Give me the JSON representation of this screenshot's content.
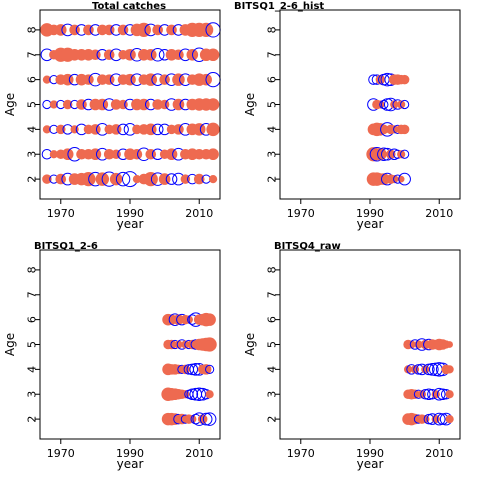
{
  "figure": {
    "background": "#ffffff",
    "colors": {
      "positive": "#EE6A50",
      "negative": "#0000FF",
      "frame": "#000000"
    }
  },
  "chart_data": [
    {
      "type": "scatter",
      "title": "Total catches",
      "xlabel": "year",
      "ylabel": "Age",
      "xlim": [
        1964,
        2016
      ],
      "ylim": [
        1.2,
        8.8
      ],
      "xticks": [
        1970,
        1990,
        2010
      ],
      "yticks": [
        2,
        3,
        4,
        5,
        6,
        7,
        8
      ],
      "years": [
        1966,
        1968,
        1970,
        1972,
        1974,
        1976,
        1978,
        1980,
        1982,
        1984,
        1986,
        1988,
        1990,
        1992,
        1994,
        1996,
        1998,
        2000,
        2002,
        2004,
        2006,
        2008,
        2010,
        2012,
        2014
      ],
      "residuals": [
        {
          "age": 2,
          "values": [
            0.4,
            -0.3,
            0.5,
            -0.6,
            0.6,
            0.7,
            0.9,
            -0.8,
            0.8,
            -0.9,
            0.7,
            -0.8,
            -1.0,
            0.3,
            0.5,
            0.9,
            -0.7,
            0.6,
            -0.5,
            -0.6,
            0.4,
            -0.4,
            0.5,
            -0.3,
            0.3
          ]
        },
        {
          "age": 3,
          "values": [
            -0.4,
            0.3,
            0.4,
            0.6,
            -0.8,
            0.5,
            0.5,
            0.6,
            -0.6,
            0.5,
            0.4,
            -0.5,
            0.6,
            0.5,
            -0.7,
            0.5,
            -0.5,
            0.4,
            0.6,
            -0.6,
            0.5,
            0.6,
            0.5,
            0.5,
            0.6
          ]
        },
        {
          "age": 4,
          "values": [
            0.3,
            -0.3,
            0.4,
            -0.4,
            0.3,
            -0.5,
            0.4,
            0.5,
            -0.6,
            0.4,
            0.5,
            -0.5,
            -0.6,
            0.4,
            0.5,
            0.6,
            -0.5,
            -0.5,
            0.4,
            0.5,
            -0.6,
            0.6,
            0.7,
            -0.6,
            0.8
          ]
        },
        {
          "age": 5,
          "values": [
            -0.3,
            0.3,
            -0.3,
            0.4,
            -0.3,
            0.5,
            -0.5,
            0.6,
            0.6,
            -0.6,
            0.5,
            0.4,
            -0.5,
            0.6,
            0.6,
            -0.5,
            0.5,
            0.4,
            -0.6,
            0.6,
            -0.5,
            0.6,
            0.7,
            0.7,
            0.7
          ]
        },
        {
          "age": 6,
          "values": [
            0.3,
            -0.3,
            0.5,
            0.6,
            -0.5,
            0.6,
            0.5,
            -0.7,
            0.5,
            0.5,
            -0.6,
            0.5,
            0.6,
            -0.6,
            0.5,
            0.7,
            -0.6,
            0.5,
            -0.6,
            0.7,
            -0.6,
            0.5,
            0.7,
            0.6,
            -0.9
          ]
        },
        {
          "age": 7,
          "values": [
            -0.6,
            0.4,
            0.9,
            0.9,
            0.6,
            0.6,
            0.6,
            0.5,
            -0.5,
            0.5,
            -0.6,
            0.4,
            0.6,
            -0.7,
            0.6,
            0.6,
            -0.7,
            -0.5,
            0.6,
            0.5,
            -0.6,
            0.6,
            -0.8,
            0.7,
            0.7
          ]
        },
        {
          "age": 8,
          "values": [
            0.8,
            0.5,
            0.6,
            -0.6,
            0.5,
            -0.5,
            0.5,
            -0.5,
            0.5,
            0.5,
            -0.5,
            0.5,
            -0.5,
            0.7,
            0.9,
            -0.6,
            0.5,
            -0.5,
            0.5,
            -0.5,
            0.6,
            0.9,
            0.9,
            0.9,
            -0.9
          ]
        }
      ]
    },
    {
      "type": "scatter",
      "title": "BITSQ1_2-6_hist",
      "xlabel": "year",
      "ylabel": "Age",
      "xlim": [
        1964,
        2016
      ],
      "ylim": [
        1.2,
        8.8
      ],
      "xticks": [
        1970,
        1990,
        2010
      ],
      "yticks": [
        2,
        3,
        4,
        5,
        6,
        7,
        8
      ],
      "years": [
        1991,
        1992,
        1993,
        1994,
        1995,
        1996,
        1997,
        1998,
        1999,
        2000
      ],
      "residuals": [
        {
          "age": 2,
          "values": [
            0.8,
            0.8,
            0.6,
            0.6,
            -0.6,
            0.4,
            0.3,
            -0.3,
            0.2,
            -0.6
          ]
        },
        {
          "age": 3,
          "values": [
            0.9,
            -0.8,
            0.7,
            -0.7,
            -0.6,
            0.4,
            -0.5,
            -0.3,
            0.3,
            -0.3
          ]
        },
        {
          "age": 4,
          "values": [
            0.6,
            0.8,
            0.7,
            0.4,
            -0.8,
            0.4,
            0.3,
            -0.3,
            0.4,
            0.4
          ]
        },
        {
          "age": 5,
          "values": [
            -0.6,
            0.4,
            0.3,
            -0.3,
            -0.6,
            -0.7,
            0.3,
            -0.4,
            0.3,
            -0.3
          ]
        },
        {
          "age": 6,
          "values": [
            -0.4,
            -0.4,
            0.4,
            -0.5,
            -0.7,
            -0.6,
            0.5,
            0.5,
            0.4,
            0.4
          ]
        }
      ]
    },
    {
      "type": "scatter",
      "title": "BITSQ1_2-6",
      "xlabel": "year",
      "ylabel": "Age",
      "xlim": [
        1964,
        2016
      ],
      "ylim": [
        1.2,
        8.8
      ],
      "xticks": [
        1970,
        1990,
        2010
      ],
      "yticks": [
        2,
        3,
        4,
        5,
        6,
        7,
        8
      ],
      "years": [
        2001,
        2002,
        2003,
        2004,
        2005,
        2006,
        2007,
        2008,
        2009,
        2010,
        2011,
        2012,
        2013
      ],
      "residuals": [
        {
          "age": 2,
          "values": [
            0.7,
            0.7,
            0.6,
            -0.4,
            0.5,
            -0.3,
            0.4,
            0.3,
            -0.4,
            -0.7,
            0.4,
            -0.6,
            -0.7
          ]
        },
        {
          "age": 3,
          "values": [
            0.8,
            0.7,
            0.6,
            0.5,
            0.4,
            0.3,
            -0.3,
            -0.5,
            -0.6,
            -0.7,
            -0.6,
            -0.4,
            0.3
          ]
        },
        {
          "age": 4,
          "values": [
            0.6,
            0.5,
            0.5,
            0.4,
            -0.3,
            0.4,
            -0.4,
            -0.5,
            -0.6,
            -0.6,
            0.4,
            0.5,
            -0.3
          ]
        },
        {
          "age": 5,
          "values": [
            0.4,
            0.4,
            -0.3,
            0.3,
            -0.4,
            0.3,
            -0.3,
            0.4,
            -0.4,
            0.6,
            0.7,
            0.8,
            0.9
          ]
        },
        {
          "age": 6,
          "values": [
            0.6,
            0.5,
            -0.6,
            0.5,
            -0.5,
            0.4,
            0.3,
            -0.4,
            -0.8,
            0.5,
            0.6,
            0.8,
            0.7
          ]
        }
      ]
    },
    {
      "type": "scatter",
      "title": "BITSQ4_raw",
      "xlabel": "year",
      "ylabel": "Age",
      "xlim": [
        1964,
        2016
      ],
      "ylim": [
        1.2,
        8.8
      ],
      "xticks": [
        1970,
        1990,
        2010
      ],
      "yticks": [
        2,
        3,
        4,
        5,
        6,
        7,
        8
      ],
      "years": [
        2001,
        2002,
        2003,
        2004,
        2005,
        2006,
        2007,
        2008,
        2009,
        2010,
        2011,
        2012,
        2013
      ],
      "residuals": [
        {
          "age": 2,
          "values": [
            0.6,
            0.7,
            0.5,
            -0.3,
            0.4,
            0.3,
            -0.4,
            -0.5,
            0.3,
            -0.6,
            -0.5,
            -0.6,
            0.3
          ]
        },
        {
          "age": 3,
          "values": [
            0.4,
            0.5,
            0.4,
            -0.3,
            0.3,
            -0.4,
            -0.5,
            -0.4,
            0.3,
            -0.6,
            -0.5,
            -0.4,
            0.3
          ]
        },
        {
          "age": 4,
          "values": [
            0.3,
            -0.4,
            0.3,
            -0.4,
            -0.5,
            0.3,
            -0.5,
            -0.6,
            -0.7,
            -0.8,
            -0.7,
            0.4,
            0.3
          ]
        },
        {
          "age": 5,
          "values": [
            0.4,
            0.3,
            -0.4,
            0.3,
            -0.6,
            0.4,
            -0.5,
            0.5,
            0.4,
            0.6,
            0.5,
            0.3,
            0.2
          ]
        },
        {
          "age": 6,
          "values": [
            null,
            null,
            null,
            null,
            null,
            null,
            null,
            null,
            null,
            null,
            null,
            null,
            null
          ]
        }
      ]
    }
  ]
}
